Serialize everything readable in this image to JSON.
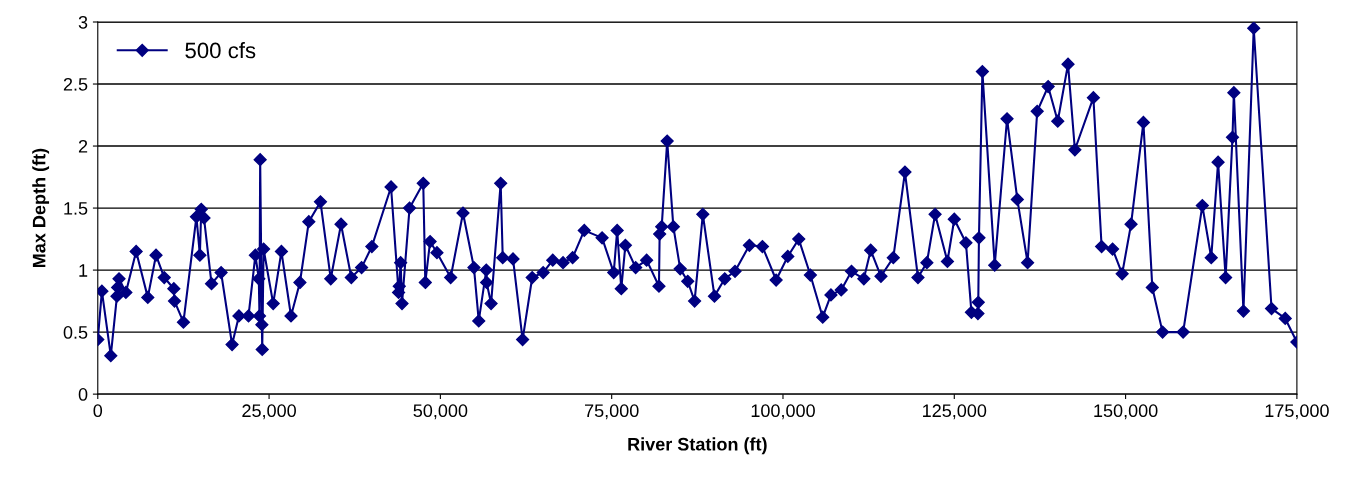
{
  "chart_data": {
    "type": "line",
    "xlabel": "River Station (ft)",
    "ylabel": "Max Depth (ft)",
    "xlim": [
      0,
      175000
    ],
    "xticks": [
      0,
      {
        "value": 25000,
        "label": "25,000"
      },
      {
        "value": 50000,
        "label": "50,000"
      },
      {
        "value": 75000,
        "label": "75,000"
      },
      {
        "value": 100000,
        "label": "100,000"
      },
      {
        "value": 125000,
        "label": "125,000"
      },
      {
        "value": 150000,
        "label": "150,000"
      },
      {
        "value": 175000,
        "label": "175,000"
      }
    ],
    "ylim": [
      0,
      3
    ],
    "yticks": [
      0,
      0.5,
      1,
      1.5,
      2,
      2.5,
      3
    ],
    "grid": "y",
    "legend": "top left",
    "marker": "diamond",
    "line_style": "solid",
    "series": [
      {
        "name": "500 cfs",
        "color": "#000080",
        "x": [
          0,
          600,
          1900,
          2800,
          2900,
          3100,
          4100,
          5600,
          7300,
          8500,
          9700,
          11100,
          11200,
          12500,
          14400,
          14900,
          15100,
          15500,
          16600,
          18000,
          19600,
          20600,
          22000,
          23000,
          23500,
          23600,
          23700,
          23950,
          24000,
          24200,
          25600,
          26800,
          28200,
          29500,
          30800,
          32500,
          34000,
          35500,
          37000,
          38500,
          40000,
          42800,
          43900,
          44000,
          44200,
          44400,
          45500,
          47500,
          47800,
          48500,
          49500,
          51500,
          53300,
          54900,
          55600,
          56700,
          56750,
          57400,
          58800,
          59100,
          60600,
          62000,
          63400,
          65000,
          66400,
          67900,
          69300,
          71000,
          73600,
          75300,
          75800,
          76400,
          77000,
          78500,
          80100,
          81900,
          82000,
          82300,
          83100,
          84000,
          85000,
          86100,
          87100,
          88300,
          90000,
          91500,
          93000,
          95100,
          97000,
          99000,
          100700,
          102300,
          104000,
          105800,
          107000,
          108500,
          110000,
          111800,
          112800,
          114300,
          116100,
          117800,
          119700,
          121000,
          122200,
          124000,
          125000,
          126700,
          127500,
          128450,
          128500,
          128600,
          129100,
          130900,
          132700,
          134200,
          135700,
          137100,
          138700,
          140100,
          141600,
          142600,
          145300,
          146500,
          148100,
          149500,
          150800,
          152600,
          153900,
          155400,
          158400,
          161200,
          162500,
          163500,
          164600,
          165600,
          165800,
          167200,
          168700,
          171300,
          173300,
          175000
        ],
        "values": [
          0.44,
          0.83,
          0.31,
          0.79,
          0.86,
          0.93,
          0.82,
          1.15,
          0.78,
          1.12,
          0.94,
          0.85,
          0.75,
          0.58,
          1.43,
          1.12,
          1.49,
          1.42,
          0.89,
          0.98,
          0.4,
          0.63,
          0.63,
          1.12,
          0.93,
          0.63,
          1.89,
          0.56,
          0.36,
          1.17,
          0.73,
          1.15,
          0.63,
          0.9,
          1.39,
          1.55,
          0.93,
          1.37,
          0.94,
          1.02,
          1.19,
          1.67,
          0.82,
          0.87,
          1.06,
          0.73,
          1.5,
          1.7,
          0.9,
          1.23,
          1.14,
          0.94,
          1.46,
          1.02,
          0.59,
          1.0,
          0.9,
          0.73,
          1.7,
          1.1,
          1.09,
          0.44,
          0.94,
          0.98,
          1.08,
          1.06,
          1.1,
          1.32,
          1.26,
          0.98,
          1.32,
          0.85,
          1.2,
          1.02,
          1.08,
          0.87,
          1.29,
          1.35,
          2.04,
          1.35,
          1.01,
          0.91,
          0.75,
          1.45,
          0.79,
          0.93,
          0.99,
          1.2,
          1.19,
          0.92,
          1.11,
          1.25,
          0.96,
          0.62,
          0.8,
          0.84,
          0.99,
          0.93,
          1.16,
          0.95,
          1.1,
          1.79,
          0.94,
          1.06,
          1.45,
          1.07,
          1.41,
          1.22,
          0.66,
          0.65,
          0.74,
          1.26,
          2.6,
          1.04,
          2.22,
          1.57,
          1.06,
          2.28,
          2.48,
          2.2,
          2.66,
          1.97,
          2.39,
          1.19,
          1.17,
          0.97,
          1.37,
          2.19,
          0.86,
          0.5,
          0.5,
          1.52,
          1.1,
          1.87,
          0.94,
          2.07,
          2.43,
          0.67,
          2.95,
          0.69,
          0.61,
          0.42
        ]
      }
    ]
  }
}
